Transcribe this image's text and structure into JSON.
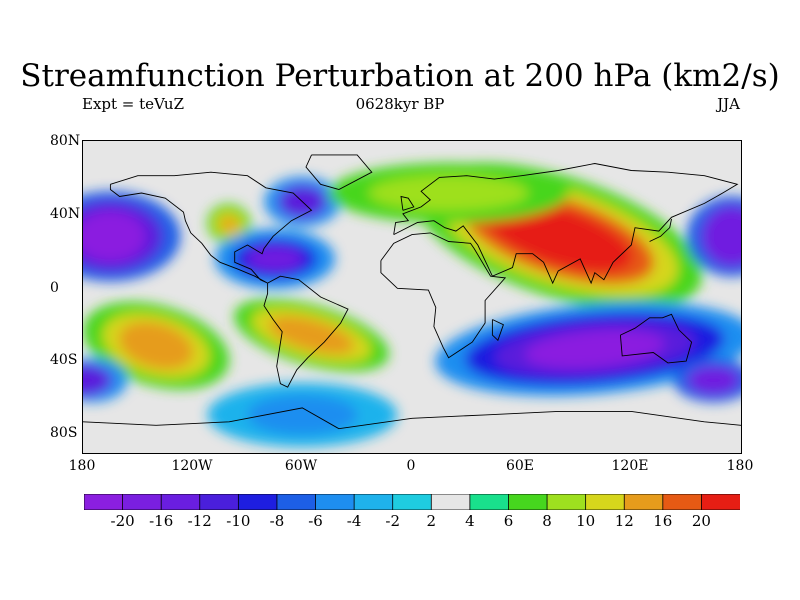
{
  "title": "Streamfunction Perturbation at 200 hPa (km2/s)",
  "subtitle_left": "Expt = teVuZ",
  "subtitle_center": "0628kyr BP",
  "subtitle_right": "JJA",
  "lat_labels": [
    "80N",
    "40N",
    "0",
    "40S",
    "80S"
  ],
  "lon_labels": [
    "180",
    "120W",
    "60W",
    "0",
    "60E",
    "120E",
    "180"
  ],
  "colorbar": {
    "labels": [
      "-20",
      "-16",
      "-12",
      "-10",
      "-8",
      "-6",
      "-4",
      "-2",
      "2",
      "4",
      "6",
      "8",
      "10",
      "12",
      "16",
      "20"
    ],
    "colors": [
      "#8b1fe0",
      "#6f1ee0",
      "#5a1fdc",
      "#1e1ee0",
      "#1d5fe6",
      "#1e8ef0",
      "#1fb2ec",
      "#1fcce0",
      "#e6e6e6",
      "#19e08c",
      "#46d61e",
      "#9ee01f",
      "#d6d61c",
      "#e69c1c",
      "#e65a14",
      "#e61e14"
    ]
  },
  "chart_data": {
    "type": "heatmap",
    "title": "Streamfunction Perturbation at 200 hPa (km2/s)",
    "xlim": [
      -180,
      180
    ],
    "ylim": [
      -90,
      90
    ],
    "features": [
      {
        "name": "eurasia-high",
        "lon": 80,
        "lat": 35,
        "value": 20
      },
      {
        "name": "south-america-high",
        "lon": -55,
        "lat": -22,
        "value": 12
      },
      {
        "name": "south-pacific-high",
        "lon": -140,
        "lat": -28,
        "value": 12
      },
      {
        "name": "north-america-high",
        "lon": -100,
        "lat": 42,
        "value": 12
      },
      {
        "name": "south-indian-low",
        "lon": 100,
        "lat": -30,
        "value": -20
      },
      {
        "name": "north-pacific-low",
        "lon": -165,
        "lat": 35,
        "value": -20
      },
      {
        "name": "north-america-low",
        "lon": -75,
        "lat": 22,
        "value": -16
      },
      {
        "name": "canada-low",
        "lon": -60,
        "lat": 55,
        "value": -12
      },
      {
        "name": "west-pacific-low",
        "lon": 175,
        "lat": 35,
        "value": -16
      },
      {
        "name": "far-south-pacific-low",
        "lon": 165,
        "lat": -48,
        "value": -16
      },
      {
        "name": "southwest-pacific-low",
        "lon": -175,
        "lat": -48,
        "value": -12
      },
      {
        "name": "antarctic-low",
        "lon": -60,
        "lat": -68,
        "value": -6
      },
      {
        "name": "north-atlantic-high",
        "lon": 20,
        "lat": 60,
        "value": 8
      }
    ]
  }
}
